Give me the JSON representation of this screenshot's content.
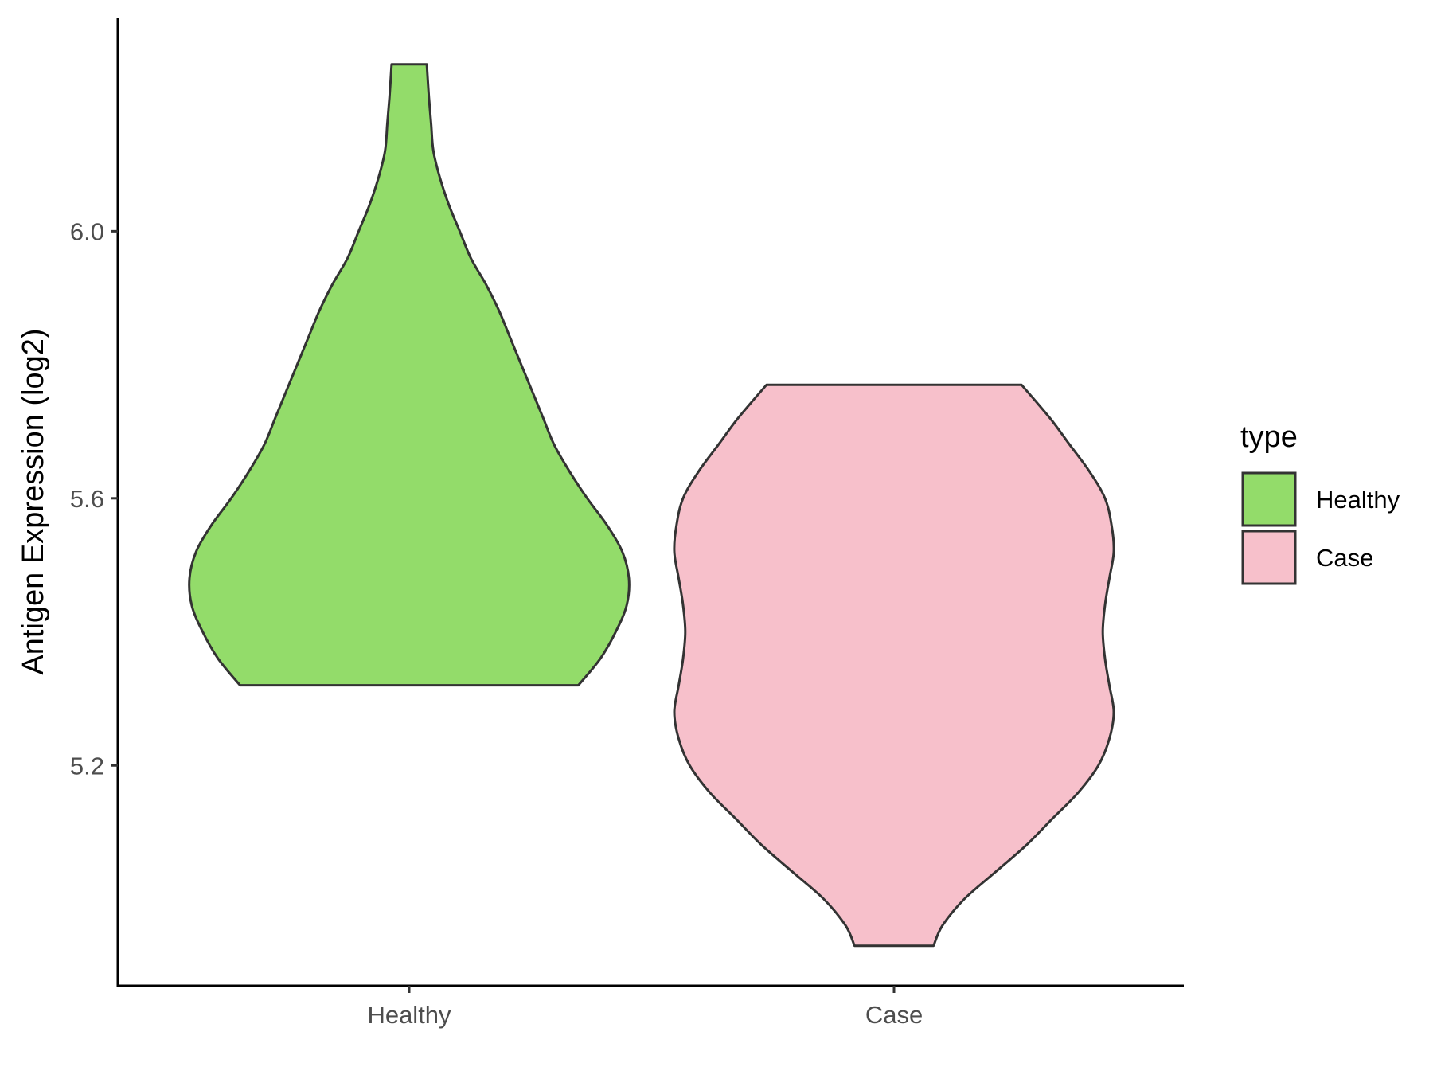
{
  "chart_data": {
    "type": "violin",
    "ylabel": "Antigen Expression (log2)",
    "xlabel": "",
    "ylim": [
      4.87,
      6.32
    ],
    "yticks": [
      5.2,
      5.6,
      6.0
    ],
    "ytick_labels": [
      "5.2",
      "5.6",
      "6.0"
    ],
    "categories": [
      "Healthy",
      "Case"
    ],
    "legend": {
      "title": "type",
      "placement": "right",
      "entries": [
        {
          "label": "Healthy",
          "color": "#93dc6a"
        },
        {
          "label": "Case",
          "color": "#f7c0cb"
        }
      ]
    },
    "series": [
      {
        "name": "Healthy",
        "color": "#93dc6a",
        "min": 5.32,
        "max": 6.25,
        "profile": [
          [
            5.32,
            0.77
          ],
          [
            5.36,
            0.87
          ],
          [
            5.4,
            0.94
          ],
          [
            5.44,
            0.99
          ],
          [
            5.48,
            1.0
          ],
          [
            5.52,
            0.97
          ],
          [
            5.56,
            0.9
          ],
          [
            5.6,
            0.81
          ],
          [
            5.64,
            0.73
          ],
          [
            5.68,
            0.66
          ],
          [
            5.72,
            0.61
          ],
          [
            5.76,
            0.56
          ],
          [
            5.8,
            0.51
          ],
          [
            5.84,
            0.46
          ],
          [
            5.88,
            0.41
          ],
          [
            5.92,
            0.35
          ],
          [
            5.96,
            0.28
          ],
          [
            6.0,
            0.23
          ],
          [
            6.04,
            0.18
          ],
          [
            6.08,
            0.14
          ],
          [
            6.12,
            0.11
          ],
          [
            6.16,
            0.1
          ],
          [
            6.2,
            0.09
          ],
          [
            6.25,
            0.08
          ]
        ]
      },
      {
        "name": "Case",
        "color": "#f7c0cb",
        "min": 4.93,
        "max": 5.77,
        "profile": [
          [
            4.93,
            0.18
          ],
          [
            4.96,
            0.22
          ],
          [
            5.0,
            0.32
          ],
          [
            5.04,
            0.46
          ],
          [
            5.08,
            0.6
          ],
          [
            5.12,
            0.72
          ],
          [
            5.16,
            0.84
          ],
          [
            5.2,
            0.93
          ],
          [
            5.24,
            0.98
          ],
          [
            5.28,
            1.0
          ],
          [
            5.32,
            0.98
          ],
          [
            5.36,
            0.96
          ],
          [
            5.4,
            0.95
          ],
          [
            5.44,
            0.96
          ],
          [
            5.48,
            0.98
          ],
          [
            5.52,
            1.0
          ],
          [
            5.56,
            0.99
          ],
          [
            5.6,
            0.96
          ],
          [
            5.64,
            0.89
          ],
          [
            5.68,
            0.8
          ],
          [
            5.72,
            0.71
          ],
          [
            5.77,
            0.58
          ]
        ]
      }
    ]
  }
}
